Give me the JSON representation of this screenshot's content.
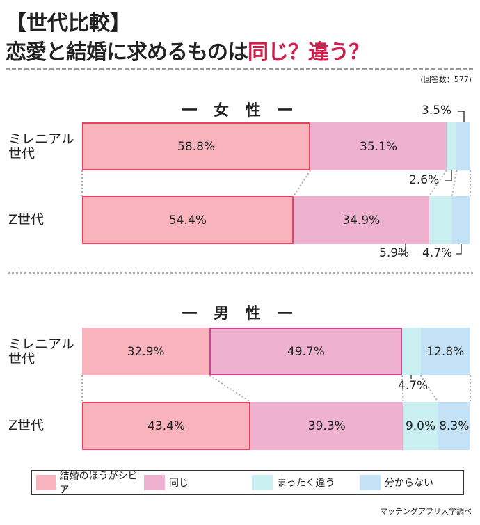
{
  "header": {
    "title_line1": "【世代比較】",
    "title_line2_black": "恋愛と結婚に求めるものは",
    "title_line2_red": "同じ？違う？",
    "respondents": "(回答数：577)",
    "source": "マッチングアプリ大学調べ"
  },
  "colors": {
    "title_accent": "#d01f4b",
    "harsher": "#f9b3bd",
    "same": "#eeb1d0",
    "different": "#c9eff0",
    "unknown": "#c3e2f5",
    "highlight_border": "#e8425e"
  },
  "chart_data": [
    {
      "type": "bar",
      "stacked": true,
      "orientation": "horizontal",
      "title": "一 女 性 一",
      "categories": [
        "ミレニアル世代",
        "Z世代"
      ],
      "unit": "%",
      "series": [
        {
          "name": "結婚のほうがシビア",
          "values": [
            58.8,
            54.4
          ]
        },
        {
          "name": "同じ",
          "values": [
            35.1,
            34.9
          ]
        },
        {
          "name": "まったく違う",
          "values": [
            2.6,
            5.9
          ]
        },
        {
          "name": "分からない",
          "values": [
            3.5,
            4.7
          ]
        }
      ],
      "labels": [
        [
          "58.8%",
          "35.1%",
          "2.6%",
          "3.5%"
        ],
        [
          "54.4%",
          "34.9%",
          "5.9%",
          "4.7%"
        ]
      ]
    },
    {
      "type": "bar",
      "stacked": true,
      "orientation": "horizontal",
      "title": "一 男 性 一",
      "categories": [
        "ミレニアル世代",
        "Z世代"
      ],
      "unit": "%",
      "series": [
        {
          "name": "結婚のほうがシビア",
          "values": [
            32.9,
            43.4
          ]
        },
        {
          "name": "同じ",
          "values": [
            49.7,
            39.3
          ]
        },
        {
          "name": "まったく違う",
          "values": [
            4.7,
            9.0
          ]
        },
        {
          "name": "分からない",
          "values": [
            12.8,
            8.3
          ]
        }
      ],
      "labels": [
        [
          "32.9%",
          "49.7%",
          "4.7%",
          "12.8%"
        ],
        [
          "43.4%",
          "39.3%",
          "9.0%",
          "8.3%"
        ]
      ]
    }
  ],
  "legend": [
    "結婚のほうがシビア",
    "同じ",
    "まったく違う",
    "分からない"
  ]
}
